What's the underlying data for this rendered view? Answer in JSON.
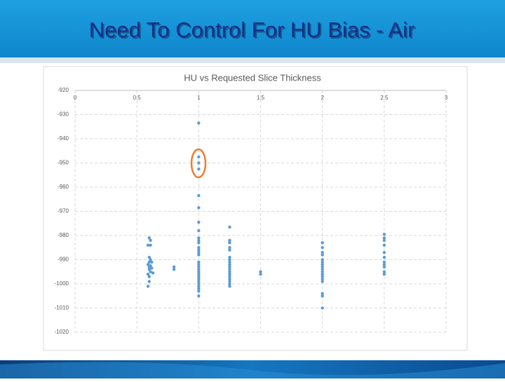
{
  "slide": {
    "title": "Need To Control For HU Bias - Air"
  },
  "chart_data": {
    "type": "scatter",
    "title": "HU vs Requested Slice Thickness",
    "color": "#5b9bd5",
    "grid": true,
    "xlim": [
      0,
      3
    ],
    "xticks": [
      0,
      0.5,
      1,
      1.5,
      2,
      2.5,
      3
    ],
    "ylim": [
      -1020,
      -920
    ],
    "yticks": [
      -920,
      -930,
      -940,
      -950,
      -960,
      -970,
      -980,
      -990,
      -1000,
      -1010,
      -1020
    ],
    "x": [
      0.6,
      0.61,
      0.59,
      0.61,
      0.6,
      0.61,
      0.6,
      0.62,
      0.59,
      0.61,
      0.6,
      0.62,
      0.6,
      0.61,
      0.63,
      0.59,
      0.6,
      0.6,
      0.59,
      0.8,
      0.8,
      1,
      1,
      1,
      1,
      1,
      1,
      1,
      1,
      1,
      1,
      1,
      1,
      1,
      1,
      1,
      1,
      1,
      1,
      1,
      1,
      1,
      1,
      1,
      1,
      1,
      1,
      1,
      1,
      1,
      1.25,
      1.25,
      1.25,
      1.25,
      1.25,
      1.25,
      1.25,
      1.25,
      1.25,
      1.25,
      1.25,
      1.25,
      1.25,
      1.25,
      1.25,
      1.25,
      1.25,
      1.25,
      1.5,
      1.5,
      2,
      2,
      2,
      2,
      2,
      2,
      2,
      2,
      2,
      2,
      2,
      2,
      2,
      2,
      2,
      2,
      2,
      2.5,
      2.5,
      2.5,
      2.5,
      2.5,
      2.5,
      2.5,
      2.5,
      2.5,
      2.5,
      2.5
    ],
    "values": [
      -981,
      -982,
      -984,
      -984,
      -989,
      -990,
      -991,
      -991,
      -992,
      -992.5,
      -993,
      -993.5,
      -994,
      -995,
      -995.5,
      -996,
      -997,
      -999,
      -1001,
      -993,
      -994,
      -933.5,
      -947.5,
      -950,
      -952.5,
      -963.5,
      -968.5,
      -974.5,
      -978,
      -981,
      -982,
      -983,
      -985,
      -986,
      -987,
      -988,
      -991,
      -992,
      -993,
      -994,
      -995,
      -996,
      -997,
      -998,
      -999,
      -1000,
      -1001,
      -1002,
      -1003,
      -1005,
      -976.5,
      -982,
      -983,
      -985,
      -986,
      -989,
      -990,
      -991,
      -992,
      -993,
      -994,
      -995,
      -996,
      -997,
      -998,
      -999,
      -1000,
      -1001,
      -995,
      -996,
      -983,
      -985,
      -987,
      -988,
      -990,
      -991,
      -992,
      -993,
      -994,
      -995,
      -996,
      -997,
      -998,
      -999,
      -1004,
      -1005,
      -1010,
      -979.5,
      -981,
      -982,
      -984,
      -987,
      -989,
      -991,
      -992,
      -993,
      -995,
      -996
    ]
  }
}
